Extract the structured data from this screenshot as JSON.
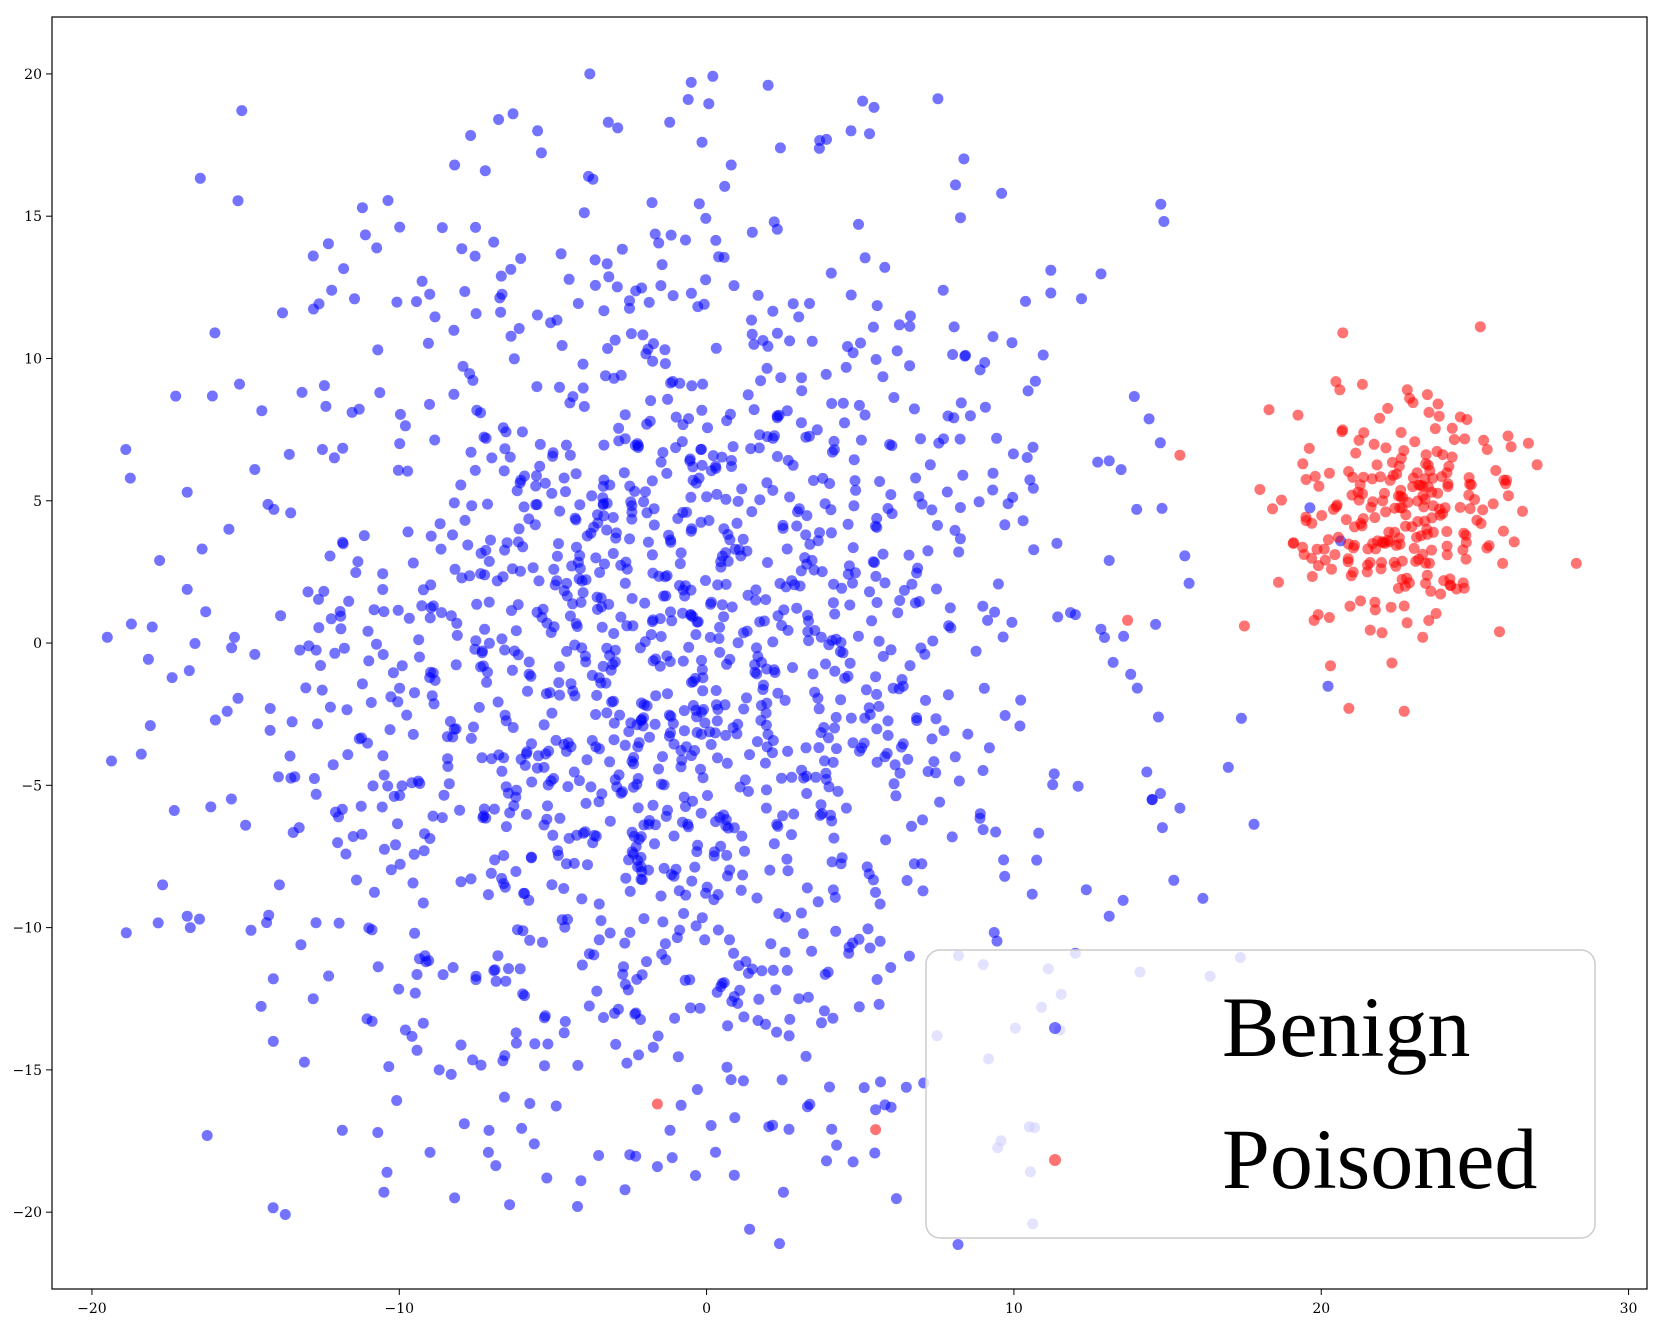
{
  "chart_data": {
    "type": "scatter",
    "title": "",
    "xlabel": "",
    "ylabel": "",
    "xlim": [
      -21.3,
      30.6
    ],
    "ylim": [
      -22.7,
      22
    ],
    "xticks": [
      -20,
      -10,
      0,
      10,
      20,
      30
    ],
    "yticks": [
      -20,
      -15,
      -10,
      -5,
      0,
      5,
      10,
      15,
      20
    ],
    "xtick_labels": [
      "−20",
      "−10",
      "0",
      "10",
      "20",
      "30"
    ],
    "ytick_labels": [
      "−20",
      "−15",
      "−10",
      "−5",
      "0",
      "5",
      "10",
      "15",
      "20"
    ],
    "grid": false,
    "legend_position": "bottom-right",
    "series": [
      {
        "name": "Benign",
        "color": "#0000ff",
        "opacity": 0.55,
        "distribution": {
          "center": [
            -1.5,
            -1.0
          ],
          "std": [
            6.5,
            8.0
          ],
          "count": 1500
        },
        "points": [
          [
            -18.9,
            6.8
          ],
          [
            -16.0,
            10.9
          ],
          [
            -18.1,
            -2.9
          ],
          [
            -17.7,
            -8.5
          ],
          [
            -16.9,
            -9.6
          ],
          [
            -16.8,
            -10.0
          ],
          [
            -16.5,
            -9.7
          ],
          [
            -15.2,
            9.1
          ],
          [
            -14.7,
            -0.4
          ],
          [
            -14.2,
            -2.3
          ],
          [
            -14.1,
            -14.0
          ],
          [
            -13.9,
            -8.5
          ],
          [
            -12.3,
            -11.7
          ],
          [
            -12.8,
            13.6
          ],
          [
            -11.2,
            15.3
          ],
          [
            -10.7,
            -17.2
          ],
          [
            -10.4,
            -18.6
          ],
          [
            -10.5,
            -19.3
          ],
          [
            -8.2,
            -19.5
          ],
          [
            -6.3,
            18.6
          ],
          [
            -3.8,
            20.0
          ],
          [
            -0.5,
            19.7
          ],
          [
            -0.6,
            19.1
          ],
          [
            2.0,
            19.6
          ],
          [
            3.9,
            17.7
          ],
          [
            4.7,
            18.0
          ],
          [
            5.3,
            17.9
          ],
          [
            8.1,
            16.1
          ],
          [
            9.6,
            15.8
          ],
          [
            11.2,
            13.1
          ],
          [
            12.2,
            12.1
          ],
          [
            11.2,
            12.3
          ],
          [
            10.7,
            9.2
          ],
          [
            12.0,
            1.0
          ],
          [
            13.1,
            2.9
          ],
          [
            13.1,
            6.4
          ],
          [
            13.8,
            -1.1
          ],
          [
            14.7,
            -2.6
          ],
          [
            14.5,
            -5.5
          ],
          [
            15.4,
            -5.8
          ],
          [
            15.7,
            2.1
          ],
          [
            13.1,
            -9.6
          ],
          [
            12.0,
            -10.9
          ],
          [
            10.9,
            -12.8
          ],
          [
            9.0,
            -11.3
          ],
          [
            11.5,
            -13.6
          ],
          [
            10.5,
            -17.0
          ],
          [
            7.5,
            -13.8
          ],
          [
            5.5,
            -16.4
          ],
          [
            4.0,
            -15.6
          ],
          [
            3.9,
            -18.2
          ],
          [
            2.5,
            -19.3
          ],
          [
            1.4,
            -20.6
          ],
          [
            0.9,
            -18.7
          ],
          [
            -1.6,
            -18.4
          ],
          [
            -4.2,
            -19.8
          ],
          [
            -5.2,
            -18.8
          ],
          [
            -7.1,
            -17.9
          ],
          [
            -9.0,
            -17.9
          ],
          [
            -13.2,
            -10.6
          ],
          [
            -14.1,
            -11.8
          ],
          [
            -12.8,
            -12.5
          ],
          [
            -15.0,
            -6.4
          ],
          [
            -15.6,
            -2.4
          ],
          [
            -16.9,
            5.3
          ],
          [
            -17.8,
            2.9
          ],
          [
            -16.3,
            1.1
          ],
          [
            -14.7,
            6.1
          ],
          [
            -13.8,
            11.6
          ],
          [
            -12.2,
            12.4
          ],
          [
            -10.7,
            10.3
          ],
          [
            -8.6,
            14.6
          ],
          [
            -8.2,
            16.8
          ],
          [
            -7.2,
            16.6
          ],
          [
            -5.5,
            18.0
          ],
          [
            -3.2,
            18.3
          ],
          [
            -1.2,
            18.3
          ],
          [
            0.8,
            16.8
          ],
          [
            2.4,
            17.4
          ],
          [
            -19.5,
            0.2
          ],
          [
            -13.4,
            -4.7
          ],
          [
            -11.5,
            -6.8
          ],
          [
            -9.8,
            -13.6
          ],
          [
            -8.7,
            -15.0
          ],
          [
            5.3,
            1.8
          ],
          [
            6.8,
            5.8
          ],
          [
            8.5,
            -3.2
          ],
          [
            9.7,
            -8.2
          ],
          [
            10.3,
            4.3
          ],
          [
            11.4,
            3.5
          ],
          [
            8.9,
            9.6
          ],
          [
            7.7,
            12.4
          ],
          [
            5.8,
            13.2
          ],
          [
            6.6,
            -11.0
          ],
          [
            3.0,
            -12.5
          ],
          [
            -2.3,
            -13.0
          ],
          [
            -6.2,
            -13.7
          ],
          [
            -9.5,
            -10.2
          ],
          [
            -11.9,
            0.5
          ],
          [
            -12.5,
            6.8
          ],
          [
            2.2,
            14.8
          ],
          [
            -3.7,
            16.3
          ]
        ]
      },
      {
        "name": "Poisoned",
        "color": "#ff0000",
        "opacity": 0.55,
        "distribution": {
          "center": [
            22.8,
            4.5
          ],
          "std": [
            1.7,
            2.0
          ],
          "count": 220
        },
        "points": [
          [
            20.7,
            10.9
          ],
          [
            22.8,
            8.9
          ],
          [
            23.8,
            8.4
          ],
          [
            18.3,
            8.2
          ],
          [
            17.5,
            0.6
          ],
          [
            19.9,
            1.0
          ],
          [
            20.3,
            -0.8
          ],
          [
            22.3,
            -0.7
          ],
          [
            22.7,
            -2.4
          ],
          [
            23.3,
            0.2
          ],
          [
            25.8,
            0.4
          ],
          [
            25.9,
            2.8
          ],
          [
            26.0,
            5.6
          ],
          [
            28.3,
            2.8
          ],
          [
            15.4,
            6.6
          ],
          [
            13.7,
            0.8
          ],
          [
            21.2,
            5.3
          ],
          [
            23.4,
            6.3
          ],
          [
            22.2,
            3.9
          ],
          [
            24.1,
            3.1
          ],
          [
            24.8,
            5.2
          ],
          [
            22.6,
            7.4
          ],
          [
            21.5,
            2.5
          ],
          [
            23.0,
            5.8
          ],
          [
            20.4,
            4.7
          ],
          [
            25.2,
            4.2
          ],
          [
            22.0,
            5.0
          ],
          [
            -1.6,
            -16.2
          ],
          [
            5.5,
            -17.1
          ],
          [
            23.6,
            4.4
          ],
          [
            19.4,
            6.3
          ],
          [
            21.9,
            7.9
          ],
          [
            24.4,
            1.9
          ],
          [
            22.7,
            1.3
          ],
          [
            20.1,
            3.3
          ],
          [
            25.4,
            6.8
          ]
        ]
      }
    ]
  },
  "legend": {
    "items": [
      {
        "label": "Benign",
        "color": "#0000ff"
      },
      {
        "label": "Poisoned",
        "color": "#ff0000"
      }
    ]
  }
}
